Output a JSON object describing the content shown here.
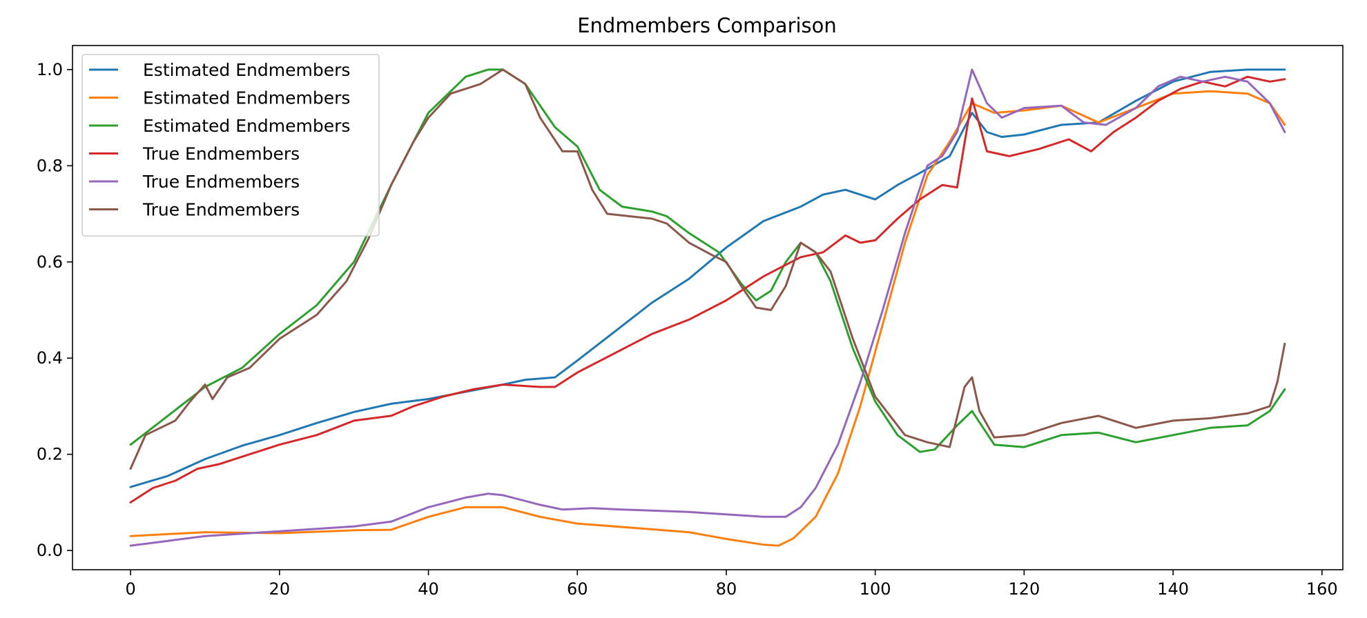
{
  "chart_data": {
    "type": "line",
    "title": "Endmembers Comparison",
    "xlabel": "",
    "ylabel": "",
    "xlim": [
      -7.8,
      162.8
    ],
    "ylim": [
      -0.04,
      1.05
    ],
    "x_ticks": [
      0,
      20,
      40,
      60,
      80,
      100,
      120,
      140,
      160
    ],
    "y_ticks": [
      0.0,
      0.2,
      0.4,
      0.6,
      0.8,
      1.0
    ],
    "x_tick_labels": [
      "0",
      "20",
      "40",
      "60",
      "80",
      "100",
      "120",
      "140",
      "160"
    ],
    "y_tick_labels": [
      "0.0",
      "0.2",
      "0.4",
      "0.6",
      "0.8",
      "1.0"
    ],
    "grid": false,
    "legend_position": "top-left",
    "series": [
      {
        "name": "Estimated Endmembers",
        "color": "#1f77b4",
        "points": [
          [
            0,
            0.132
          ],
          [
            5,
            0.155
          ],
          [
            10,
            0.19
          ],
          [
            15,
            0.218
          ],
          [
            20,
            0.24
          ],
          [
            25,
            0.265
          ],
          [
            30,
            0.288
          ],
          [
            35,
            0.305
          ],
          [
            40,
            0.315
          ],
          [
            45,
            0.33
          ],
          [
            50,
            0.345
          ],
          [
            53,
            0.355
          ],
          [
            57,
            0.36
          ],
          [
            60,
            0.395
          ],
          [
            65,
            0.455
          ],
          [
            70,
            0.515
          ],
          [
            75,
            0.565
          ],
          [
            80,
            0.63
          ],
          [
            85,
            0.685
          ],
          [
            90,
            0.715
          ],
          [
            93,
            0.74
          ],
          [
            96,
            0.75
          ],
          [
            100,
            0.73
          ],
          [
            103,
            0.76
          ],
          [
            106,
            0.785
          ],
          [
            110,
            0.82
          ],
          [
            113,
            0.91
          ],
          [
            115,
            0.87
          ],
          [
            117,
            0.86
          ],
          [
            120,
            0.865
          ],
          [
            125,
            0.885
          ],
          [
            130,
            0.89
          ],
          [
            135,
            0.935
          ],
          [
            140,
            0.975
          ],
          [
            145,
            0.995
          ],
          [
            150,
            1.0
          ],
          [
            155,
            1.0
          ]
        ]
      },
      {
        "name": "Estimated Endmembers",
        "color": "#ff7f0e",
        "points": [
          [
            0,
            0.03
          ],
          [
            5,
            0.034
          ],
          [
            10,
            0.038
          ],
          [
            20,
            0.036
          ],
          [
            30,
            0.042
          ],
          [
            35,
            0.043
          ],
          [
            40,
            0.07
          ],
          [
            45,
            0.09
          ],
          [
            50,
            0.09
          ],
          [
            55,
            0.07
          ],
          [
            60,
            0.056
          ],
          [
            65,
            0.05
          ],
          [
            70,
            0.044
          ],
          [
            75,
            0.038
          ],
          [
            80,
            0.024
          ],
          [
            85,
            0.012
          ],
          [
            87,
            0.01
          ],
          [
            89,
            0.025
          ],
          [
            92,
            0.07
          ],
          [
            95,
            0.16
          ],
          [
            98,
            0.3
          ],
          [
            101,
            0.47
          ],
          [
            104,
            0.64
          ],
          [
            107,
            0.78
          ],
          [
            110,
            0.85
          ],
          [
            113,
            0.93
          ],
          [
            116,
            0.91
          ],
          [
            120,
            0.915
          ],
          [
            125,
            0.925
          ],
          [
            130,
            0.89
          ],
          [
            135,
            0.92
          ],
          [
            140,
            0.95
          ],
          [
            145,
            0.955
          ],
          [
            150,
            0.95
          ],
          [
            153,
            0.93
          ],
          [
            155,
            0.885
          ]
        ]
      },
      {
        "name": "Estimated Endmembers",
        "color": "#2ca02c",
        "points": [
          [
            0,
            0.22
          ],
          [
            5,
            0.28
          ],
          [
            10,
            0.34
          ],
          [
            15,
            0.38
          ],
          [
            20,
            0.45
          ],
          [
            25,
            0.51
          ],
          [
            30,
            0.6
          ],
          [
            35,
            0.76
          ],
          [
            40,
            0.91
          ],
          [
            45,
            0.985
          ],
          [
            48,
            1.0
          ],
          [
            50,
            1.0
          ],
          [
            53,
            0.97
          ],
          [
            57,
            0.88
          ],
          [
            60,
            0.84
          ],
          [
            63,
            0.75
          ],
          [
            66,
            0.715
          ],
          [
            70,
            0.705
          ],
          [
            72,
            0.695
          ],
          [
            75,
            0.66
          ],
          [
            79,
            0.62
          ],
          [
            82,
            0.555
          ],
          [
            84,
            0.52
          ],
          [
            86,
            0.54
          ],
          [
            88,
            0.6
          ],
          [
            90,
            0.64
          ],
          [
            92,
            0.62
          ],
          [
            94,
            0.56
          ],
          [
            97,
            0.42
          ],
          [
            100,
            0.31
          ],
          [
            103,
            0.24
          ],
          [
            106,
            0.205
          ],
          [
            108,
            0.21
          ],
          [
            111,
            0.26
          ],
          [
            113,
            0.29
          ],
          [
            116,
            0.22
          ],
          [
            120,
            0.215
          ],
          [
            125,
            0.24
          ],
          [
            130,
            0.245
          ],
          [
            135,
            0.225
          ],
          [
            140,
            0.24
          ],
          [
            145,
            0.255
          ],
          [
            150,
            0.26
          ],
          [
            153,
            0.29
          ],
          [
            155,
            0.335
          ]
        ]
      },
      {
        "name": "True Endmembers",
        "color": "#d62728",
        "points": [
          [
            0,
            0.1
          ],
          [
            3,
            0.13
          ],
          [
            6,
            0.145
          ],
          [
            9,
            0.17
          ],
          [
            12,
            0.18
          ],
          [
            15,
            0.195
          ],
          [
            20,
            0.22
          ],
          [
            25,
            0.24
          ],
          [
            30,
            0.27
          ],
          [
            35,
            0.28
          ],
          [
            38,
            0.3
          ],
          [
            42,
            0.32
          ],
          [
            46,
            0.335
          ],
          [
            50,
            0.345
          ],
          [
            55,
            0.34
          ],
          [
            57,
            0.34
          ],
          [
            60,
            0.37
          ],
          [
            65,
            0.41
          ],
          [
            70,
            0.45
          ],
          [
            75,
            0.48
          ],
          [
            80,
            0.52
          ],
          [
            85,
            0.57
          ],
          [
            90,
            0.61
          ],
          [
            93,
            0.62
          ],
          [
            96,
            0.655
          ],
          [
            98,
            0.64
          ],
          [
            100,
            0.645
          ],
          [
            103,
            0.69
          ],
          [
            106,
            0.73
          ],
          [
            109,
            0.76
          ],
          [
            111,
            0.755
          ],
          [
            113,
            0.94
          ],
          [
            115,
            0.83
          ],
          [
            118,
            0.82
          ],
          [
            122,
            0.835
          ],
          [
            126,
            0.855
          ],
          [
            129,
            0.83
          ],
          [
            132,
            0.87
          ],
          [
            135,
            0.9
          ],
          [
            138,
            0.935
          ],
          [
            141,
            0.96
          ],
          [
            144,
            0.975
          ],
          [
            147,
            0.965
          ],
          [
            150,
            0.985
          ],
          [
            153,
            0.975
          ],
          [
            155,
            0.98
          ]
        ]
      },
      {
        "name": "True Endmembers",
        "color": "#9467bd",
        "points": [
          [
            0,
            0.01
          ],
          [
            5,
            0.02
          ],
          [
            10,
            0.03
          ],
          [
            15,
            0.035
          ],
          [
            20,
            0.04
          ],
          [
            25,
            0.045
          ],
          [
            30,
            0.05
          ],
          [
            35,
            0.06
          ],
          [
            40,
            0.09
          ],
          [
            45,
            0.11
          ],
          [
            48,
            0.118
          ],
          [
            50,
            0.115
          ],
          [
            55,
            0.095
          ],
          [
            58,
            0.085
          ],
          [
            62,
            0.088
          ],
          [
            66,
            0.085
          ],
          [
            70,
            0.083
          ],
          [
            75,
            0.08
          ],
          [
            80,
            0.075
          ],
          [
            85,
            0.07
          ],
          [
            88,
            0.07
          ],
          [
            90,
            0.09
          ],
          [
            92,
            0.13
          ],
          [
            95,
            0.22
          ],
          [
            98,
            0.35
          ],
          [
            101,
            0.5
          ],
          [
            104,
            0.66
          ],
          [
            107,
            0.8
          ],
          [
            109,
            0.82
          ],
          [
            111,
            0.87
          ],
          [
            113,
            1.0
          ],
          [
            115,
            0.93
          ],
          [
            117,
            0.9
          ],
          [
            120,
            0.92
          ],
          [
            125,
            0.925
          ],
          [
            128,
            0.89
          ],
          [
            131,
            0.885
          ],
          [
            135,
            0.92
          ],
          [
            138,
            0.965
          ],
          [
            141,
            0.985
          ],
          [
            144,
            0.975
          ],
          [
            147,
            0.985
          ],
          [
            150,
            0.975
          ],
          [
            153,
            0.93
          ],
          [
            155,
            0.87
          ]
        ]
      },
      {
        "name": "True Endmembers",
        "color": "#8c564b",
        "points": [
          [
            0,
            0.17
          ],
          [
            2,
            0.24
          ],
          [
            4,
            0.255
          ],
          [
            6,
            0.27
          ],
          [
            8,
            0.31
          ],
          [
            10,
            0.345
          ],
          [
            11,
            0.315
          ],
          [
            13,
            0.36
          ],
          [
            16,
            0.38
          ],
          [
            20,
            0.44
          ],
          [
            25,
            0.49
          ],
          [
            29,
            0.56
          ],
          [
            32,
            0.65
          ],
          [
            35,
            0.76
          ],
          [
            38,
            0.85
          ],
          [
            40,
            0.9
          ],
          [
            43,
            0.95
          ],
          [
            47,
            0.97
          ],
          [
            50,
            1.0
          ],
          [
            53,
            0.97
          ],
          [
            55,
            0.9
          ],
          [
            58,
            0.83
          ],
          [
            60,
            0.83
          ],
          [
            62,
            0.75
          ],
          [
            64,
            0.7
          ],
          [
            67,
            0.695
          ],
          [
            70,
            0.69
          ],
          [
            72,
            0.68
          ],
          [
            75,
            0.64
          ],
          [
            78,
            0.615
          ],
          [
            80,
            0.6
          ],
          [
            82,
            0.55
          ],
          [
            84,
            0.505
          ],
          [
            86,
            0.5
          ],
          [
            88,
            0.55
          ],
          [
            90,
            0.64
          ],
          [
            92,
            0.62
          ],
          [
            94,
            0.58
          ],
          [
            97,
            0.44
          ],
          [
            100,
            0.32
          ],
          [
            102,
            0.28
          ],
          [
            104,
            0.24
          ],
          [
            107,
            0.225
          ],
          [
            110,
            0.215
          ],
          [
            112,
            0.34
          ],
          [
            113,
            0.36
          ],
          [
            114,
            0.29
          ],
          [
            116,
            0.235
          ],
          [
            120,
            0.24
          ],
          [
            125,
            0.265
          ],
          [
            130,
            0.28
          ],
          [
            135,
            0.255
          ],
          [
            140,
            0.27
          ],
          [
            145,
            0.275
          ],
          [
            150,
            0.285
          ],
          [
            153,
            0.3
          ],
          [
            154,
            0.35
          ],
          [
            155,
            0.43
          ]
        ]
      }
    ]
  }
}
